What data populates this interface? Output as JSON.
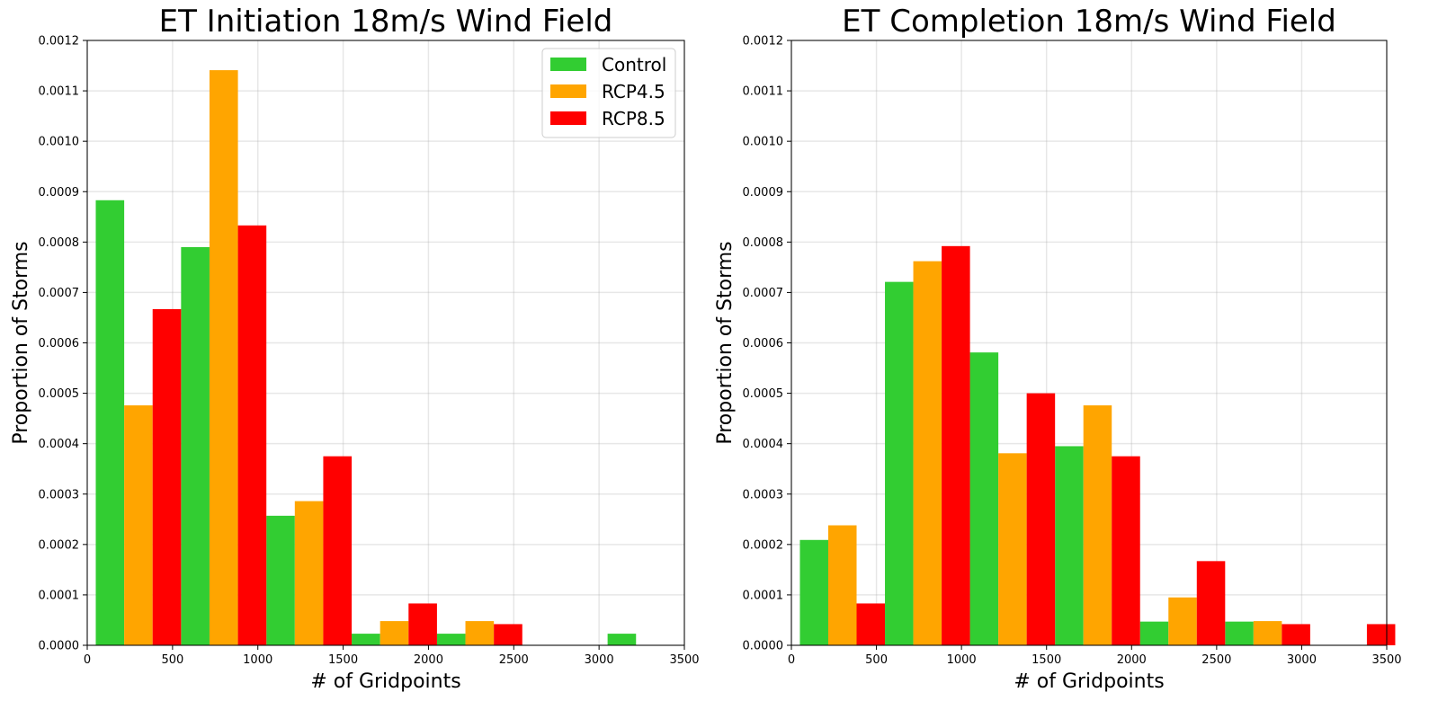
{
  "chart_data": [
    {
      "type": "bar",
      "title": "ET Initiation 18m/s Wind Field",
      "xlabel": "# of Gridpoints",
      "ylabel": "Proportion of Storms",
      "xlim": [
        0,
        3500
      ],
      "ylim": [
        0,
        0.0012
      ],
      "xticks": [
        "0",
        "500",
        "1000",
        "1500",
        "2000",
        "2500",
        "3000",
        "3500"
      ],
      "yticks": [
        "0.0000",
        "0.0001",
        "0.0002",
        "0.0003",
        "0.0004",
        "0.0005",
        "0.0006",
        "0.0007",
        "0.0008",
        "0.0009",
        "0.0010",
        "0.0011",
        "0.0012"
      ],
      "bin_width": 500,
      "bin_starts": [
        50,
        550,
        1050,
        1550,
        2050,
        2550,
        3050
      ],
      "grid": true,
      "legend": "top-right",
      "series": [
        {
          "name": "Control",
          "color": "#32cd32",
          "values": [
            0.000883,
            0.00079,
            0.000257,
            2.3e-05,
            2.3e-05,
            0.0,
            2.3e-05
          ]
        },
        {
          "name": "RCP4.5",
          "color": "#ffa500",
          "values": [
            0.000476,
            0.001141,
            0.000286,
            4.8e-05,
            4.8e-05,
            0.0,
            0.0
          ]
        },
        {
          "name": "RCP8.5",
          "color": "#ff0000",
          "values": [
            0.000667,
            0.000833,
            0.000375,
            8.3e-05,
            4.2e-05,
            0.0,
            0.0
          ]
        }
      ]
    },
    {
      "type": "bar",
      "title": "ET Completion 18m/s Wind Field",
      "xlabel": "# of Gridpoints",
      "ylabel": "Proportion of Storms",
      "xlim": [
        0,
        3500
      ],
      "ylim": [
        0,
        0.0012
      ],
      "xticks": [
        "0",
        "500",
        "1000",
        "1500",
        "2000",
        "2500",
        "3000",
        "3500"
      ],
      "yticks": [
        "0.0000",
        "0.0001",
        "0.0002",
        "0.0003",
        "0.0004",
        "0.0005",
        "0.0006",
        "0.0007",
        "0.0008",
        "0.0009",
        "0.0010",
        "0.0011",
        "0.0012"
      ],
      "bin_width": 500,
      "bin_starts": [
        50,
        550,
        1050,
        1550,
        2050,
        2550,
        3050
      ],
      "grid": true,
      "legend": "",
      "series": [
        {
          "name": "Control",
          "color": "#32cd32",
          "values": [
            0.000209,
            0.000721,
            0.000581,
            0.000395,
            4.7e-05,
            4.7e-05,
            0.0
          ]
        },
        {
          "name": "RCP4.5",
          "color": "#ffa500",
          "values": [
            0.000238,
            0.000762,
            0.000381,
            0.000476,
            9.5e-05,
            4.8e-05,
            0.0
          ]
        },
        {
          "name": "RCP8.5",
          "color": "#ff0000",
          "values": [
            8.3e-05,
            0.000792,
            0.0005,
            0.000375,
            0.000167,
            4.2e-05,
            4.2e-05
          ]
        }
      ]
    }
  ]
}
